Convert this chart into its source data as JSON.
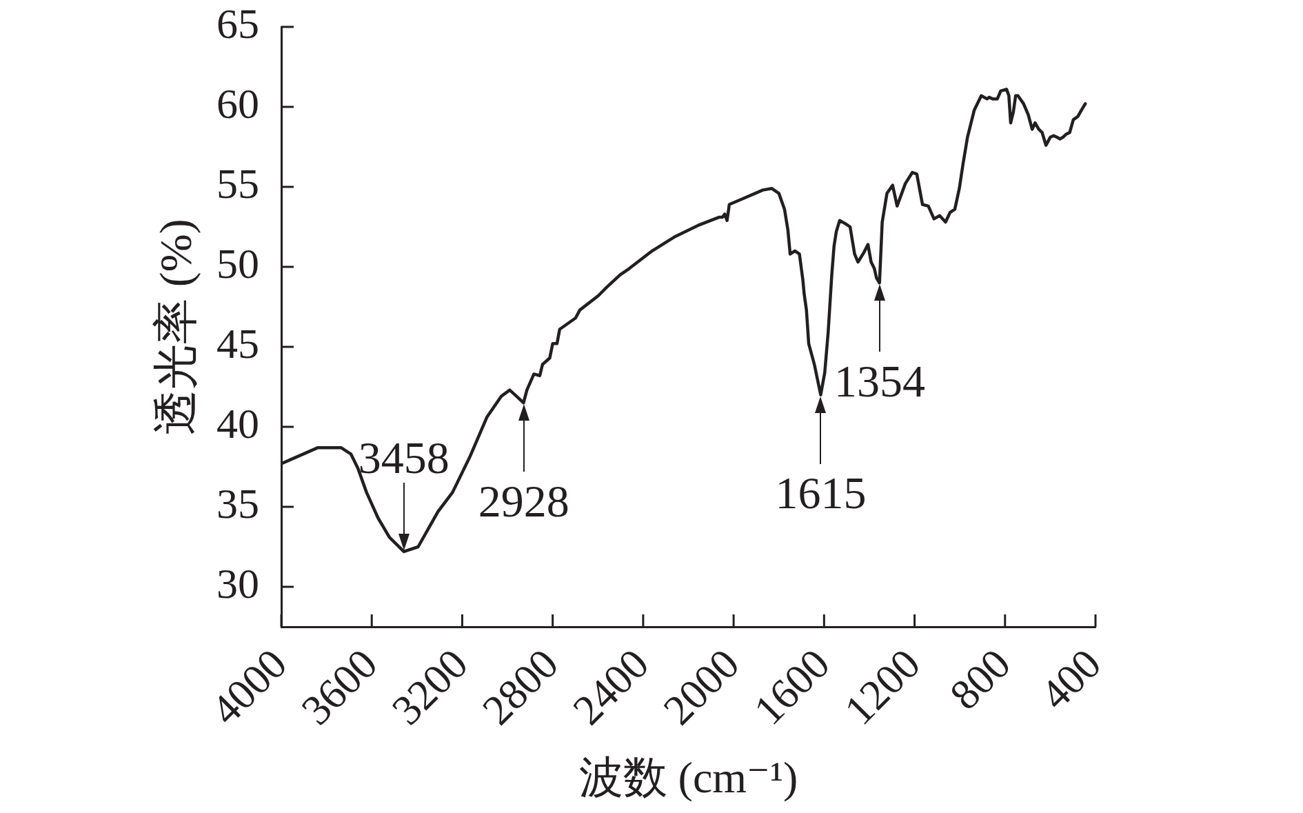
{
  "chart_data": {
    "type": "line",
    "xlabel": "波数 (cm⁻¹)",
    "ylabel": "透光率 (%)",
    "x": [
      4000,
      3951,
      3838,
      3736,
      3692,
      3661,
      3623,
      3572,
      3522,
      3458,
      3395,
      3307,
      3243,
      3167,
      3091,
      3028,
      2990,
      2959,
      2929,
      2914,
      2883,
      2857,
      2845,
      2813,
      2800,
      2781,
      2769,
      2699,
      2680,
      2598,
      2563,
      2502,
      2461,
      2360,
      2258,
      2156,
      2065,
      2050,
      2039,
      2029,
      2019,
      1953,
      1871,
      1831,
      1800,
      1775,
      1760,
      1750,
      1729,
      1709,
      1694,
      1688,
      1678,
      1668,
      1643,
      1615,
      1597,
      1582,
      1566,
      1556,
      1546,
      1531,
      1506,
      1485,
      1465,
      1450,
      1424,
      1406,
      1392,
      1378,
      1368,
      1355,
      1343,
      1322,
      1297,
      1277,
      1241,
      1210,
      1190,
      1165,
      1139,
      1114,
      1089,
      1063,
      1043,
      1022,
      1002,
      986,
      966,
      936,
      905,
      880,
      870,
      855,
      834,
      819,
      793,
      783,
      775,
      763,
      753,
      743,
      718,
      697,
      680,
      667,
      651,
      636,
      619,
      600,
      585,
      570,
      557,
      544,
      529,
      514,
      498,
      478,
      462,
      445
    ],
    "values": [
      37.7,
      38.0,
      38.7,
      38.7,
      38.3,
      37.4,
      35.9,
      34.3,
      33.1,
      32.2,
      32.5,
      34.7,
      35.9,
      38.1,
      40.6,
      41.9,
      42.3,
      41.9,
      41.5,
      42.3,
      43.3,
      43.2,
      43.9,
      44.3,
      45.2,
      45.2,
      46.1,
      46.8,
      47.3,
      48.2,
      48.7,
      49.5,
      49.9,
      51.0,
      51.9,
      52.6,
      53.1,
      53.1,
      53.3,
      52.9,
      53.9,
      54.3,
      54.8,
      54.9,
      54.6,
      53.6,
      52.3,
      50.8,
      51.0,
      50.8,
      49.2,
      48.3,
      47.3,
      45.2,
      43.9,
      42.0,
      43.4,
      45.9,
      49.5,
      51.3,
      52.2,
      52.9,
      52.7,
      52.5,
      50.8,
      50.3,
      50.9,
      51.4,
      50.3,
      49.9,
      49.3,
      49.0,
      52.8,
      54.6,
      55.1,
      53.8,
      55.2,
      55.9,
      55.8,
      53.9,
      53.8,
      53.0,
      53.2,
      52.8,
      53.4,
      53.6,
      54.9,
      56.4,
      58.1,
      59.8,
      60.7,
      60.5,
      60.6,
      60.5,
      60.5,
      61.0,
      61.1,
      60.7,
      59.0,
      59.7,
      60.7,
      60.7,
      60.2,
      59.5,
      58.6,
      59.0,
      58.6,
      58.4,
      57.6,
      58.1,
      58.2,
      58.1,
      58.0,
      58.1,
      58.3,
      58.4,
      59.2,
      59.4,
      59.8,
      60.2
    ],
    "color": "#231f20",
    "marker": "none",
    "line_style": "solid",
    "xlim": [
      4000,
      400
    ],
    "xticks": [
      4000,
      3600,
      3200,
      2800,
      2400,
      2000,
      1600,
      1200,
      800,
      400
    ],
    "ylim": [
      27.5,
      65
    ],
    "yticks": [
      30,
      35,
      40,
      45,
      50,
      55,
      60,
      65
    ],
    "annotations": [
      {
        "text": "3458",
        "x": 3458,
        "y": 32.2
      },
      {
        "text": "2928",
        "x": 2928,
        "y": 41.5
      },
      {
        "text": "1615",
        "x": 1615,
        "y": 42.0
      },
      {
        "text": "1354",
        "x": 1354,
        "y": 49.0
      }
    ]
  }
}
